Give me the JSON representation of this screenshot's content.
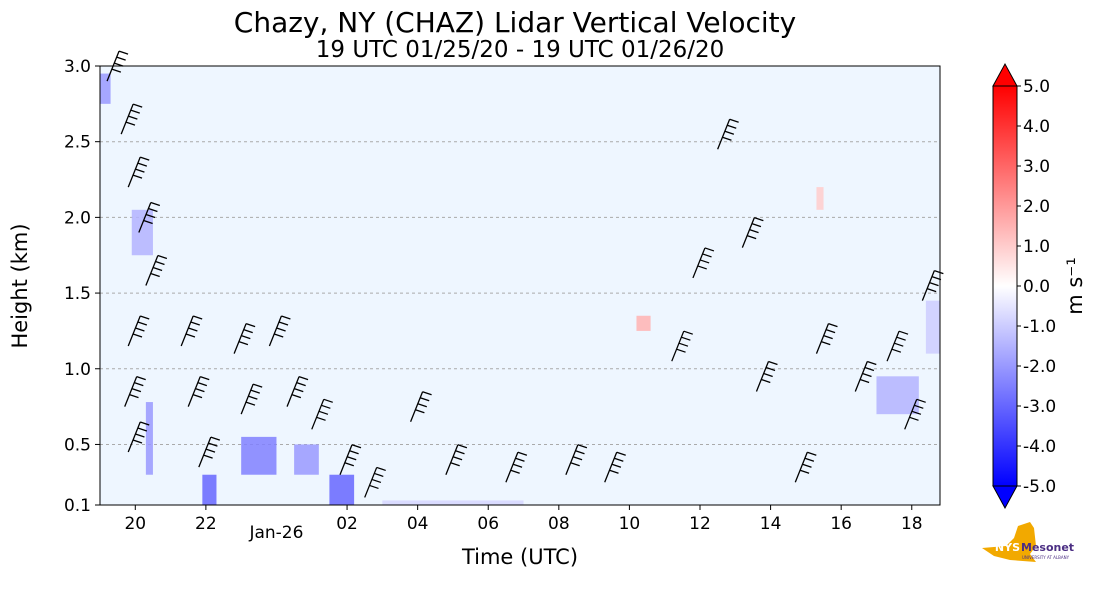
{
  "chart_data": {
    "type": "heatmap",
    "title": "Chazy, NY (CHAZ) Lidar Vertical Velocity",
    "subtitle": "19 UTC 01/25/20 - 19 UTC 01/26/20",
    "xlabel": "Time (UTC)",
    "ylabel": "Height (km)",
    "x_range_hours": [
      19,
      42.8
    ],
    "x_ticks": [
      {
        "label": "20",
        "hour": 20
      },
      {
        "label": "22",
        "hour": 22
      },
      {
        "label": "02",
        "hour": 26
      },
      {
        "label": "04",
        "hour": 28
      },
      {
        "label": "06",
        "hour": 30
      },
      {
        "label": "08",
        "hour": 32
      },
      {
        "label": "10",
        "hour": 34
      },
      {
        "label": "12",
        "hour": 36
      },
      {
        "label": "14",
        "hour": 38
      },
      {
        "label": "16",
        "hour": 40
      },
      {
        "label": "18",
        "hour": 42
      }
    ],
    "date_label": {
      "label": "Jan-26",
      "hour": 24
    },
    "ylim": [
      0.1,
      3.0
    ],
    "y_ticks": [
      "0.1",
      "0.5",
      "1.0",
      "1.5",
      "2.0",
      "2.5",
      "3.0"
    ],
    "grid": "horizontal dashed",
    "background_color": "#eef6ff",
    "colorbar": {
      "label": "m s⁻¹",
      "range": [
        -5.0,
        5.0
      ],
      "ticks": [
        "5.0",
        "4.0",
        "3.0",
        "2.0",
        "1.0",
        "0.0",
        "-1.0",
        "-2.0",
        "-3.0",
        "-4.0",
        "-5.0"
      ],
      "low_color": "#0000ff",
      "mid_color": "#ffffff",
      "high_color": "#ff0000"
    },
    "velocity_patches": [
      {
        "t0": 19.0,
        "t1": 19.3,
        "h0": 2.75,
        "h1": 2.95,
        "w": -2.0
      },
      {
        "t0": 19.9,
        "t1": 20.5,
        "h0": 1.75,
        "h1": 2.05,
        "w": -1.5
      },
      {
        "t0": 20.3,
        "t1": 20.5,
        "h0": 0.3,
        "h1": 0.78,
        "w": -2.0
      },
      {
        "t0": 21.9,
        "t1": 22.3,
        "h0": 0.1,
        "h1": 0.3,
        "w": -3.0
      },
      {
        "t0": 23.0,
        "t1": 24.0,
        "h0": 0.3,
        "h1": 0.55,
        "w": -2.5
      },
      {
        "t0": 24.5,
        "t1": 25.2,
        "h0": 0.3,
        "h1": 0.5,
        "w": -2.0
      },
      {
        "t0": 25.5,
        "t1": 26.2,
        "h0": 0.1,
        "h1": 0.3,
        "w": -3.0
      },
      {
        "t0": 27.0,
        "t1": 31.0,
        "h0": 0.1,
        "h1": 0.13,
        "w": -0.8
      },
      {
        "t0": 41.0,
        "t1": 42.2,
        "h0": 0.7,
        "h1": 0.95,
        "w": -1.5
      },
      {
        "t0": 42.4,
        "t1": 42.8,
        "h0": 1.1,
        "h1": 1.45,
        "w": -1.0
      },
      {
        "t0": 34.2,
        "t1": 34.6,
        "h0": 1.25,
        "h1": 1.35,
        "w": 1.5
      },
      {
        "t0": 39.3,
        "t1": 39.5,
        "h0": 2.05,
        "h1": 2.2,
        "w": 1.0
      }
    ],
    "wind_barbs": [
      {
        "t": 19.2,
        "h": 2.9
      },
      {
        "t": 19.6,
        "h": 2.55
      },
      {
        "t": 19.8,
        "h": 2.2
      },
      {
        "t": 20.1,
        "h": 1.9
      },
      {
        "t": 20.3,
        "h": 1.55
      },
      {
        "t": 19.8,
        "h": 1.15
      },
      {
        "t": 19.7,
        "h": 0.75
      },
      {
        "t": 19.8,
        "h": 0.45
      },
      {
        "t": 21.3,
        "h": 1.15
      },
      {
        "t": 21.5,
        "h": 0.75
      },
      {
        "t": 21.8,
        "h": 0.35
      },
      {
        "t": 22.8,
        "h": 1.1
      },
      {
        "t": 23.0,
        "h": 0.7
      },
      {
        "t": 23.8,
        "h": 1.15
      },
      {
        "t": 24.3,
        "h": 0.75
      },
      {
        "t": 25.0,
        "h": 0.6
      },
      {
        "t": 25.8,
        "h": 0.3
      },
      {
        "t": 26.5,
        "h": 0.15
      },
      {
        "t": 27.8,
        "h": 0.65
      },
      {
        "t": 28.8,
        "h": 0.3
      },
      {
        "t": 30.5,
        "h": 0.25
      },
      {
        "t": 32.2,
        "h": 0.3
      },
      {
        "t": 33.3,
        "h": 0.25
      },
      {
        "t": 35.2,
        "h": 1.05
      },
      {
        "t": 35.8,
        "h": 1.6
      },
      {
        "t": 36.5,
        "h": 2.45
      },
      {
        "t": 37.2,
        "h": 1.8
      },
      {
        "t": 37.6,
        "h": 0.85
      },
      {
        "t": 38.7,
        "h": 0.25
      },
      {
        "t": 39.3,
        "h": 1.1
      },
      {
        "t": 40.4,
        "h": 0.85
      },
      {
        "t": 41.3,
        "h": 1.05
      },
      {
        "t": 41.8,
        "h": 0.6
      },
      {
        "t": 42.3,
        "h": 1.45
      }
    ],
    "logo_text": [
      "NYS",
      "Mesonet",
      "UNIVERSITY AT ALBANY"
    ]
  }
}
